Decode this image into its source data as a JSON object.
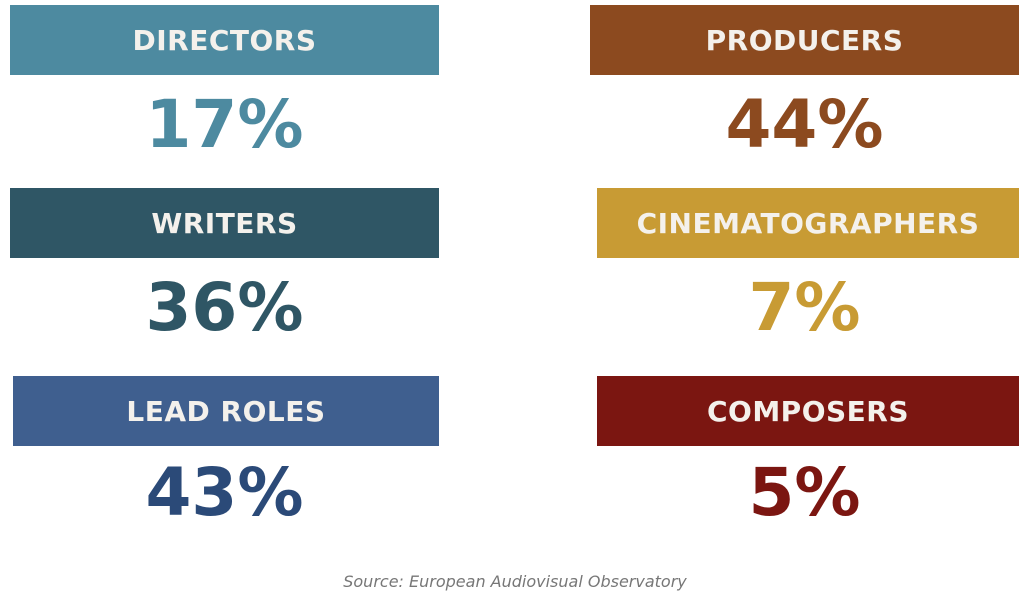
{
  "items": [
    {
      "label": "DIRECTORS",
      "value": "17%"
    },
    {
      "label": "PRODUCERS",
      "value": "44%"
    },
    {
      "label": "WRITERS",
      "value": "36%"
    },
    {
      "label": "CINEMATOGRAPHERS",
      "value": "7%"
    },
    {
      "label": "LEAD ROLES",
      "value": "43%"
    },
    {
      "label": "COMPOSERS",
      "value": "5%"
    }
  ],
  "source": "Source: European Audiovisual Observatory"
}
